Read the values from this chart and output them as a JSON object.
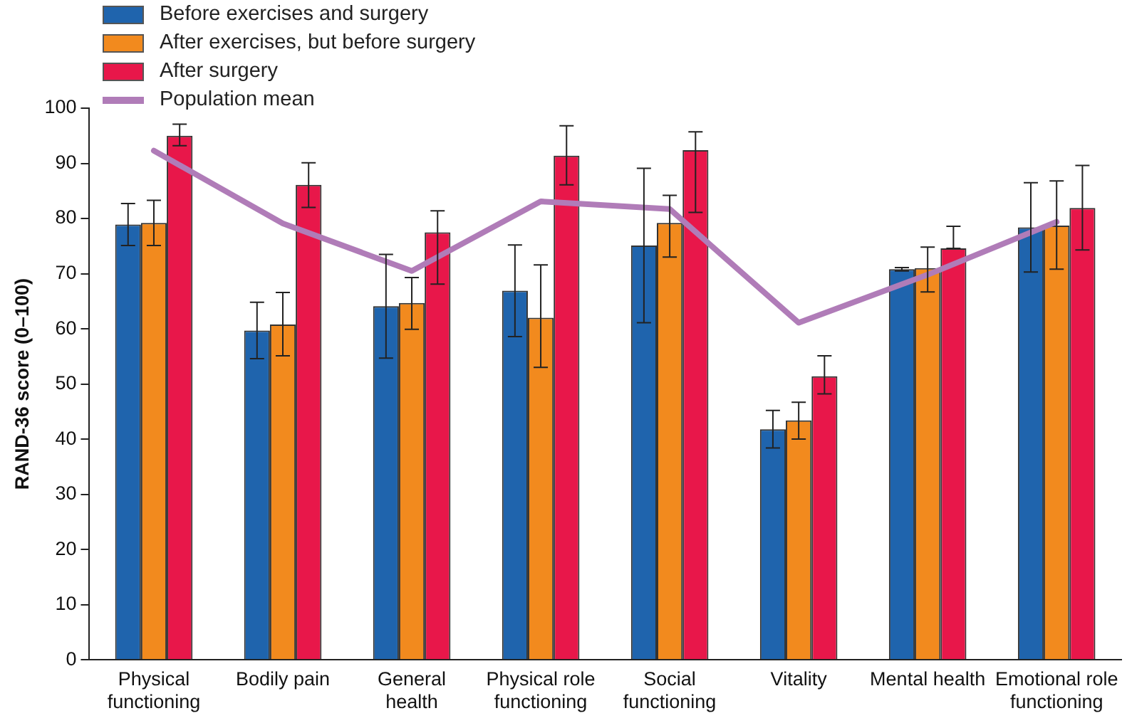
{
  "chart_data": {
    "type": "bar",
    "ylabel": "RAND-36 score (0–100)",
    "categories": [
      "Physical functioning",
      "Bodily pain",
      "General health",
      "Physical role functioning",
      "Social functioning",
      "Vitality",
      "Mental health",
      "Emotional role functioning"
    ],
    "series": [
      {
        "name": "Before exercises and surgery",
        "color": "#1f64ad",
        "values": [
          78.9,
          59.7,
          64.1,
          66.9,
          75.1,
          41.8,
          70.8,
          78.4
        ],
        "errors": [
          3.8,
          5.1,
          9.4,
          8.3,
          14.0,
          3.4,
          0.3,
          8.1
        ]
      },
      {
        "name": "After exercises, but before surgery",
        "color": "#f28a1e",
        "values": [
          79.2,
          60.8,
          64.7,
          62.0,
          79.2,
          43.4,
          71.0,
          78.7
        ],
        "errors": [
          [
            75.1,
            83.3
          ],
          [
            55.1,
            66.6
          ],
          [
            59.9,
            69.3
          ],
          [
            53.0,
            71.6
          ],
          [
            73.0,
            84.2
          ],
          [
            40.0,
            46.7
          ],
          [
            66.7,
            74.8
          ],
          [
            70.8,
            86.8
          ]
        ]
      },
      {
        "name": "After surgery",
        "color": "#e8174a",
        "values": [
          95.0,
          86.1,
          77.5,
          91.4,
          92.4,
          51.4,
          74.6,
          81.9
        ],
        "errors": [
          [
            93.2,
            97.1
          ],
          [
            82.0,
            90.1
          ],
          [
            68.1,
            81.4
          ],
          [
            86.1,
            96.8
          ],
          [
            81.1,
            95.7
          ],
          [
            48.2,
            55.1
          ],
          [
            74.6,
            78.6
          ],
          [
            74.3,
            89.6
          ]
        ]
      },
      {
        "name": "Population mean",
        "type": "line",
        "color": "#b07cb8",
        "values": [
          92.3,
          79.1,
          70.5,
          83.1,
          81.7,
          61.1,
          69.8,
          79.4
        ]
      }
    ],
    "ylim": [
      0,
      100
    ],
    "yticks": [
      0,
      10,
      20,
      30,
      40,
      50,
      60,
      70,
      80,
      90,
      100
    ],
    "grid": false,
    "legend": "top left",
    "marker": "none",
    "line_style": "solid"
  }
}
